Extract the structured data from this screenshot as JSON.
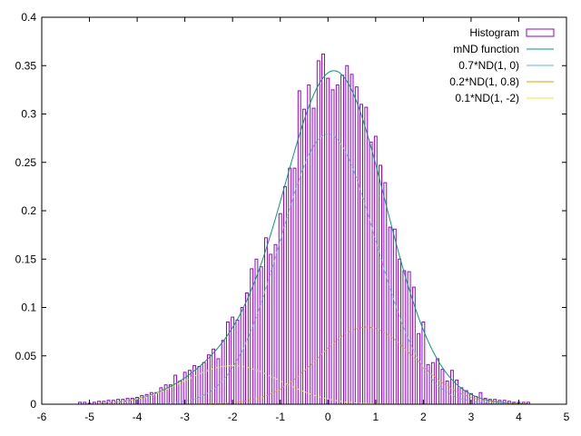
{
  "chart_data": {
    "type": "bar",
    "title": "",
    "xlabel": "",
    "ylabel": "",
    "xlim": [
      -6,
      5
    ],
    "ylim": [
      0,
      0.4
    ],
    "x_ticks": [
      "-6",
      "-5",
      "-4",
      "-3",
      "-2",
      "-1",
      "0",
      "1",
      "2",
      "3",
      "4",
      "5"
    ],
    "y_ticks": [
      "0",
      "0.05",
      "0.1",
      "0.15",
      "0.2",
      "0.25",
      "0.3",
      "0.35",
      "0.4"
    ],
    "grid": false,
    "legend_position": "top-right",
    "histogram": {
      "name": "Histogram",
      "color": "#9400d3",
      "bin_width": 0.1,
      "x": [
        -5.2,
        -5.1,
        -5.0,
        -4.9,
        -4.8,
        -4.7,
        -4.6,
        -4.5,
        -4.4,
        -4.3,
        -4.2,
        -4.1,
        -4.0,
        -3.9,
        -3.8,
        -3.7,
        -3.6,
        -3.5,
        -3.4,
        -3.3,
        -3.2,
        -3.1,
        -3.0,
        -2.9,
        -2.8,
        -2.7,
        -2.6,
        -2.5,
        -2.4,
        -2.3,
        -2.2,
        -2.1,
        -2.0,
        -1.9,
        -1.8,
        -1.7,
        -1.6,
        -1.5,
        -1.4,
        -1.3,
        -1.2,
        -1.1,
        -1.0,
        -0.9,
        -0.8,
        -0.7,
        -0.6,
        -0.5,
        -0.4,
        -0.3,
        -0.2,
        -0.1,
        0.0,
        0.1,
        0.2,
        0.3,
        0.4,
        0.5,
        0.6,
        0.7,
        0.8,
        0.9,
        1.0,
        1.1,
        1.2,
        1.3,
        1.4,
        1.5,
        1.6,
        1.7,
        1.8,
        1.9,
        2.0,
        2.1,
        2.2,
        2.3,
        2.4,
        2.5,
        2.6,
        2.7,
        2.8,
        2.9,
        3.0,
        3.1,
        3.2,
        3.3,
        3.4,
        3.5,
        3.6,
        3.7,
        3.8,
        3.9,
        4.0,
        4.1,
        4.2
      ],
      "values": [
        0.002,
        0.002,
        0.001,
        0.002,
        0.003,
        0.003,
        0.004,
        0.004,
        0.005,
        0.005,
        0.006,
        0.006,
        0.007,
        0.009,
        0.01,
        0.012,
        0.012,
        0.017,
        0.02,
        0.02,
        0.03,
        0.024,
        0.033,
        0.035,
        0.04,
        0.039,
        0.043,
        0.051,
        0.057,
        0.047,
        0.066,
        0.085,
        0.09,
        0.087,
        0.1,
        0.115,
        0.14,
        0.15,
        0.142,
        0.172,
        0.155,
        0.165,
        0.197,
        0.225,
        0.244,
        0.244,
        0.324,
        0.305,
        0.33,
        0.306,
        0.355,
        0.362,
        0.337,
        0.325,
        0.33,
        0.34,
        0.35,
        0.341,
        0.328,
        0.31,
        0.307,
        0.271,
        0.277,
        0.247,
        0.229,
        0.183,
        0.181,
        0.15,
        0.138,
        0.137,
        0.121,
        0.073,
        0.085,
        0.041,
        0.043,
        0.047,
        0.036,
        0.024,
        0.035,
        0.025,
        0.017,
        0.014,
        0.011,
        0.008,
        0.012,
        0.006,
        0.005,
        0.005,
        0.004,
        0.004,
        0.003,
        0.002,
        0.002,
        0.002,
        0.002
      ]
    },
    "series": [
      {
        "name": "mND function",
        "color": "#009e73",
        "function": "0.7*ND(1,0) + 0.2*ND(1,0.8) + 0.1*ND(1,-2)"
      },
      {
        "name": "0.7*ND(1, 0)",
        "color": "#56b4e9",
        "weight": 0.7,
        "sigma": 1,
        "mu": 0
      },
      {
        "name": "0.2*ND(1, 0.8)",
        "color": "#e69f00",
        "weight": 0.2,
        "sigma": 1,
        "mu": 0.8
      },
      {
        "name": "0.1*ND(1, -2)",
        "color": "#f0e442",
        "weight": 0.1,
        "sigma": 1,
        "mu": -2
      }
    ]
  }
}
